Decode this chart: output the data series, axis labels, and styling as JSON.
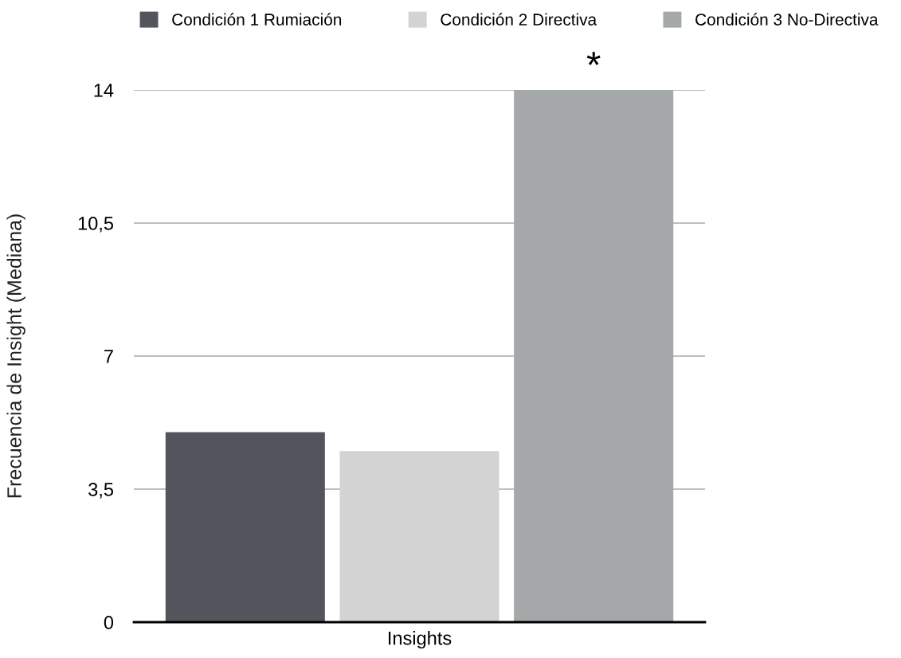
{
  "chart_data": {
    "type": "bar",
    "ylabel": "Frecuencia de Insight (Mediana)",
    "categories": [
      "Insights"
    ],
    "series": [
      {
        "name": "Condición 1 Rumiación",
        "color": "#52565c",
        "values": [
          5
        ]
      },
      {
        "name": "Condición 2 Directiva",
        "color": "#d3d3d3",
        "values": [
          4.5
        ]
      },
      {
        "name": "Condición 3 No-Directiva",
        "color": "#a4a8a8",
        "values": [
          14
        ]
      }
    ],
    "ylim": [
      0,
      14
    ],
    "yticks": [
      0,
      {
        "value": 3.5,
        "label": "3,5"
      },
      7,
      {
        "value": 10.5,
        "label": "10,5"
      },
      14
    ],
    "grid": "y",
    "legend": "top",
    "annotations": [
      "*"
    ]
  }
}
